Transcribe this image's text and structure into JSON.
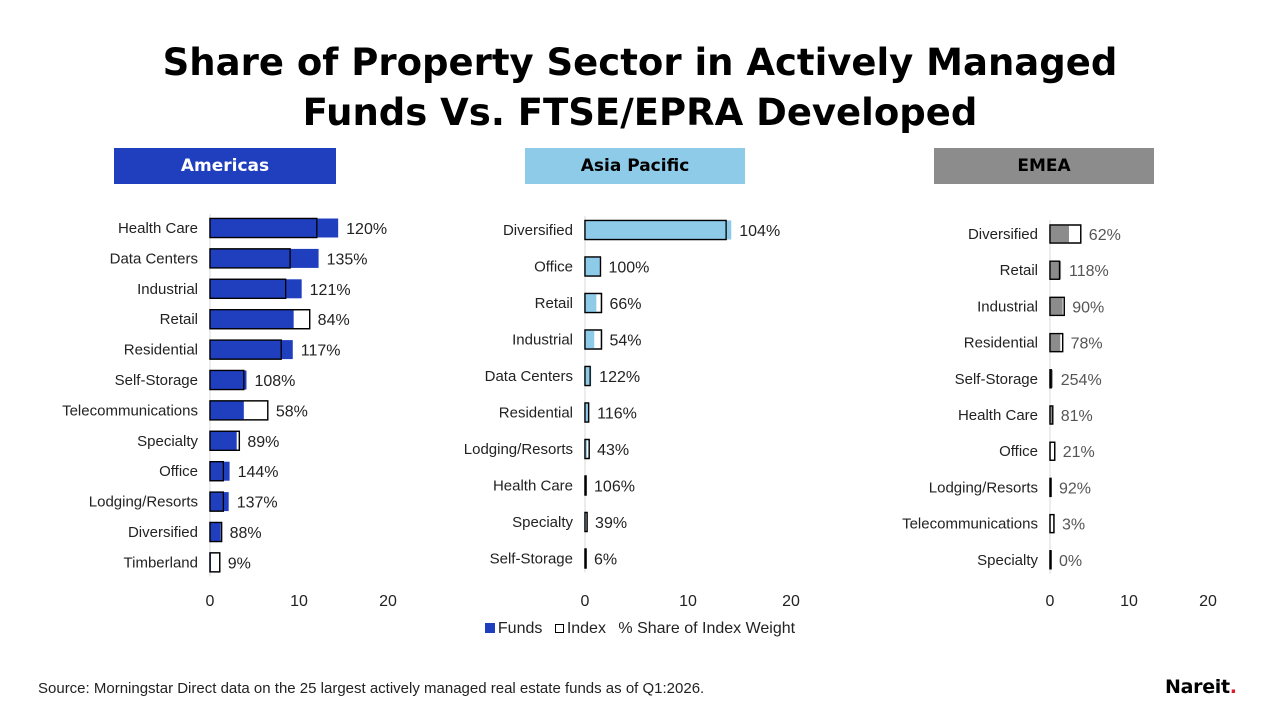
{
  "title_line1": "Share of Property Sector in Actively Managed",
  "title_line2": "Funds Vs. FTSE/EPRA Developed",
  "legend": {
    "funds_label": "Funds",
    "index_label": "Index",
    "suffix": "% Share of Index Weight"
  },
  "source": "Source: Morningstar Direct data on the 25 largest actively managed real estate funds as of Q1:2026.",
  "logo_text": "Nareit",
  "logo_dot": ".",
  "colors": {
    "americas": "#1f3fbf",
    "asia_pacific": "#8ecbe8",
    "emea": "#8c8c8c",
    "index_fill": "#ffffff",
    "index_stroke": "#000000"
  },
  "chart_data": [
    {
      "type": "bar",
      "orientation": "horizontal",
      "title": "Americas",
      "xlim": [
        0,
        20
      ],
      "xticks": [
        0,
        10,
        20
      ],
      "categories": [
        "Health Care",
        "Data Centers",
        "Industrial",
        "Retail",
        "Residential",
        "Self-Storage",
        "Telecommunications",
        "Specialty",
        "Office",
        "Lodging/Resorts",
        "Diversified",
        "Timberland"
      ],
      "series": [
        {
          "name": "Funds",
          "values": [
            14.4,
            12.2,
            10.3,
            9.4,
            9.3,
            4.1,
            3.8,
            3.0,
            2.2,
            2.1,
            1.2,
            0.1
          ]
        },
        {
          "name": "Index",
          "values": [
            12.0,
            9.0,
            8.5,
            11.2,
            8.0,
            3.8,
            6.5,
            3.3,
            1.5,
            1.5,
            1.3,
            1.1
          ]
        }
      ],
      "labels": [
        "120%",
        "135%",
        "121%",
        "84%",
        "117%",
        "108%",
        "58%",
        "89%",
        "144%",
        "137%",
        "88%",
        "9%"
      ]
    },
    {
      "type": "bar",
      "orientation": "horizontal",
      "title": "Asia Pacific",
      "xlim": [
        0,
        20
      ],
      "xticks": [
        0,
        10,
        20
      ],
      "categories": [
        "Diversified",
        "Office",
        "Retail",
        "Industrial",
        "Data Centers",
        "Residential",
        "Lodging/Resorts",
        "Health Care",
        "Specialty",
        "Self-Storage"
      ],
      "series": [
        {
          "name": "Funds",
          "values": [
            14.2,
            1.5,
            1.1,
            0.9,
            0.6,
            0.4,
            0.2,
            0.1,
            0.1,
            0.0
          ]
        },
        {
          "name": "Index",
          "values": [
            13.7,
            1.5,
            1.6,
            1.6,
            0.5,
            0.35,
            0.4,
            0.1,
            0.2,
            0.1
          ]
        }
      ],
      "labels": [
        "104%",
        "100%",
        "66%",
        "54%",
        "122%",
        "116%",
        "43%",
        "106%",
        "39%",
        "6%"
      ]
    },
    {
      "type": "bar",
      "orientation": "horizontal",
      "title": "EMEA",
      "xlim": [
        0,
        20
      ],
      "xticks": [
        0,
        10,
        20
      ],
      "categories": [
        "Diversified",
        "Retail",
        "Industrial",
        "Residential",
        "Self-Storage",
        "Health Care",
        "Office",
        "Lodging/Resorts",
        "Telecommunications",
        "Specialty"
      ],
      "series": [
        {
          "name": "Funds",
          "values": [
            2.4,
            1.4,
            1.6,
            1.3,
            0.35,
            0.3,
            0.1,
            0.1,
            0.0,
            0.0
          ]
        },
        {
          "name": "Index",
          "values": [
            3.9,
            1.2,
            1.8,
            1.6,
            0.15,
            0.35,
            0.6,
            0.12,
            0.5,
            0.1
          ]
        }
      ],
      "labels": [
        "62%",
        "118%",
        "90%",
        "78%",
        "254%",
        "81%",
        "21%",
        "92%",
        "3%",
        "0%"
      ]
    }
  ]
}
